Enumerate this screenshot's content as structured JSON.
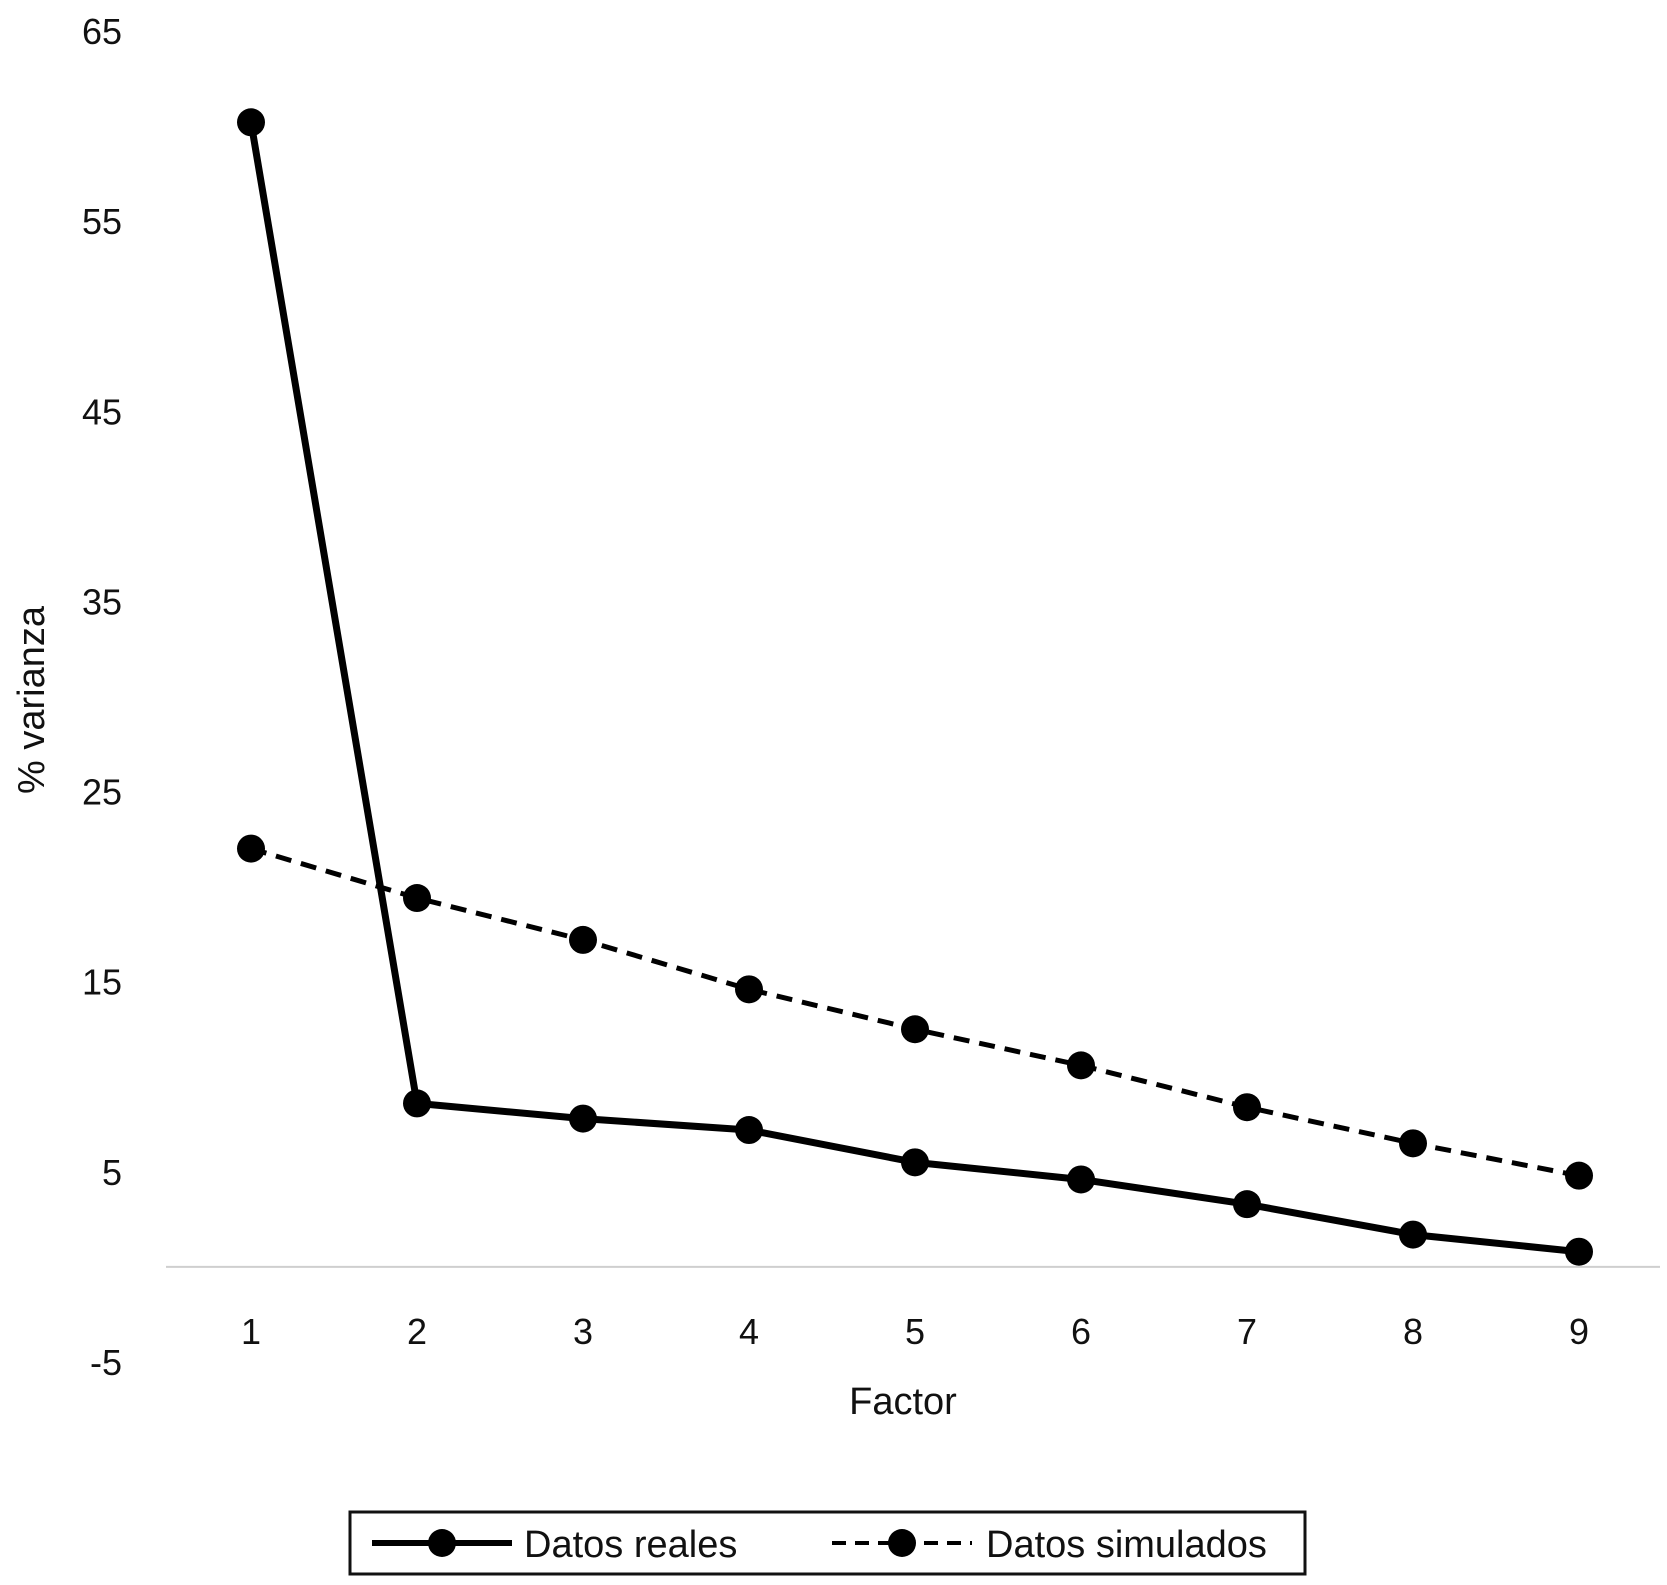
{
  "chart_data": {
    "type": "line",
    "title": "",
    "xlabel": "Factor",
    "ylabel": "% varianza",
    "x": [
      1,
      2,
      3,
      4,
      5,
      6,
      7,
      8,
      9
    ],
    "x_tick_labels": [
      "1",
      "2",
      "3",
      "4",
      "5",
      "6",
      "7",
      "8",
      "9"
    ],
    "y_tick_labels": [
      "65",
      "55",
      "45",
      "35",
      "25",
      "15",
      "5",
      "-5"
    ],
    "ylim": [
      -5,
      65
    ],
    "grid": false,
    "legend_position": "bottom",
    "series": [
      {
        "name": "Datos reales",
        "style": "solid",
        "color": "#000000",
        "values": [
          60.2,
          8.6,
          7.8,
          7.2,
          5.5,
          4.6,
          3.3,
          1.7,
          0.8
        ]
      },
      {
        "name": "Datos simulados",
        "style": "dashed",
        "color": "#000000",
        "values": [
          22.0,
          19.4,
          17.2,
          14.6,
          12.5,
          10.6,
          8.4,
          6.5,
          4.8
        ]
      }
    ]
  }
}
